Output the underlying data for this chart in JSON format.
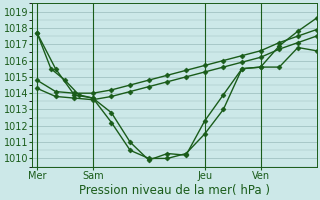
{
  "background_color": "#cce8e8",
  "plot_bg_color": "#cce8e8",
  "grid_color": "#99bbbb",
  "line_color": "#1a5c1a",
  "ylim": [
    1009.5,
    1019.5
  ],
  "yticks": [
    1010,
    1011,
    1012,
    1013,
    1014,
    1015,
    1016,
    1017,
    1018,
    1019
  ],
  "xlabel": "Pression niveau de la mer( hPa )",
  "xlabel_fontsize": 8.5,
  "tick_fontsize": 7,
  "xtick_labels": [
    "Mer",
    "Sam",
    "Jeu",
    "Ven"
  ],
  "xtick_positions": [
    0,
    12,
    36,
    48
  ],
  "vline_positions": [
    0,
    12,
    36,
    48
  ],
  "xlim": [
    -1,
    60
  ],
  "series": [
    {
      "x": [
        0,
        4,
        8,
        12,
        16,
        20,
        24,
        28,
        32,
        36,
        40,
        44,
        48,
        52,
        56,
        60
      ],
      "y": [
        1017.7,
        1015.5,
        1013.9,
        1013.7,
        1012.8,
        1011.0,
        1009.9,
        1010.3,
        1010.2,
        1012.3,
        1013.9,
        1015.5,
        1015.6,
        1015.6,
        1016.8,
        1016.6
      ]
    },
    {
      "x": [
        0,
        4,
        8,
        12,
        16,
        20,
        24,
        28,
        32,
        36,
        40,
        44,
        48,
        52,
        56,
        60
      ],
      "y": [
        1014.8,
        1014.1,
        1014.0,
        1014.0,
        1014.2,
        1014.5,
        1014.8,
        1015.1,
        1015.4,
        1015.7,
        1016.0,
        1016.3,
        1016.6,
        1017.1,
        1017.5,
        1017.9
      ]
    },
    {
      "x": [
        0,
        4,
        8,
        12,
        16,
        20,
        24,
        28,
        32,
        36,
        40,
        44,
        48,
        52,
        56,
        60
      ],
      "y": [
        1014.3,
        1013.8,
        1013.7,
        1013.6,
        1013.8,
        1014.1,
        1014.4,
        1014.7,
        1015.0,
        1015.3,
        1015.6,
        1015.9,
        1016.2,
        1016.7,
        1017.1,
        1017.5
      ]
    },
    {
      "x": [
        0,
        3,
        6,
        9,
        12,
        16,
        20,
        24,
        28,
        32,
        36,
        40,
        44,
        48,
        52,
        56,
        60
      ],
      "y": [
        1017.7,
        1015.5,
        1014.8,
        1013.9,
        1013.7,
        1012.2,
        1010.5,
        1010.0,
        1010.0,
        1010.3,
        1011.5,
        1013.0,
        1015.5,
        1015.6,
        1016.9,
        1017.8,
        1018.6
      ]
    }
  ],
  "marker": "D",
  "marker_size": 2.5,
  "linewidth": 1.0
}
